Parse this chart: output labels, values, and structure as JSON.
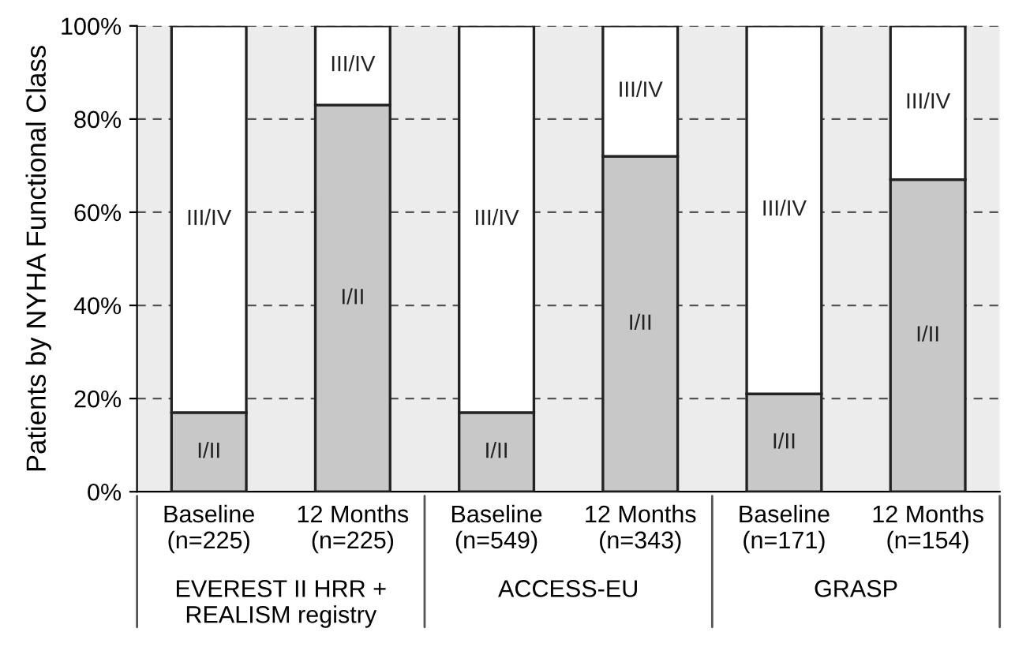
{
  "chart_data": {
    "type": "bar",
    "stacked": true,
    "ylabel": "Patients by NYHA Functional Class",
    "categories": [
      "Baseline\n(n=225)",
      "12 Months\n(n=225)",
      "Baseline\n(n=549)",
      "12 Months\n(n=343)",
      "Baseline\n(n=171)",
      "12 Months\n(n=154)"
    ],
    "series": [
      {
        "name": "I/II",
        "color": "#c8c8c8",
        "values": [
          17,
          83,
          17,
          72,
          21,
          67
        ]
      },
      {
        "name": "III/IV",
        "color": "#ffffff",
        "values": [
          83,
          17,
          83,
          28,
          79,
          33
        ]
      }
    ],
    "annotations": [
      "EVEREST II HRR +\nREALISM registry",
      "ACCESS-EU",
      "GRASP"
    ],
    "ylim": [
      0,
      100
    ],
    "yticks": [
      {
        "value": 0,
        "label": "0%"
      },
      {
        "value": 20,
        "label": "20%"
      },
      {
        "value": 40,
        "label": "40%"
      },
      {
        "value": 60,
        "label": "60%"
      },
      {
        "value": 80,
        "label": "80%"
      },
      {
        "value": 100,
        "label": "100%"
      }
    ],
    "grid": "y",
    "legend": false
  }
}
